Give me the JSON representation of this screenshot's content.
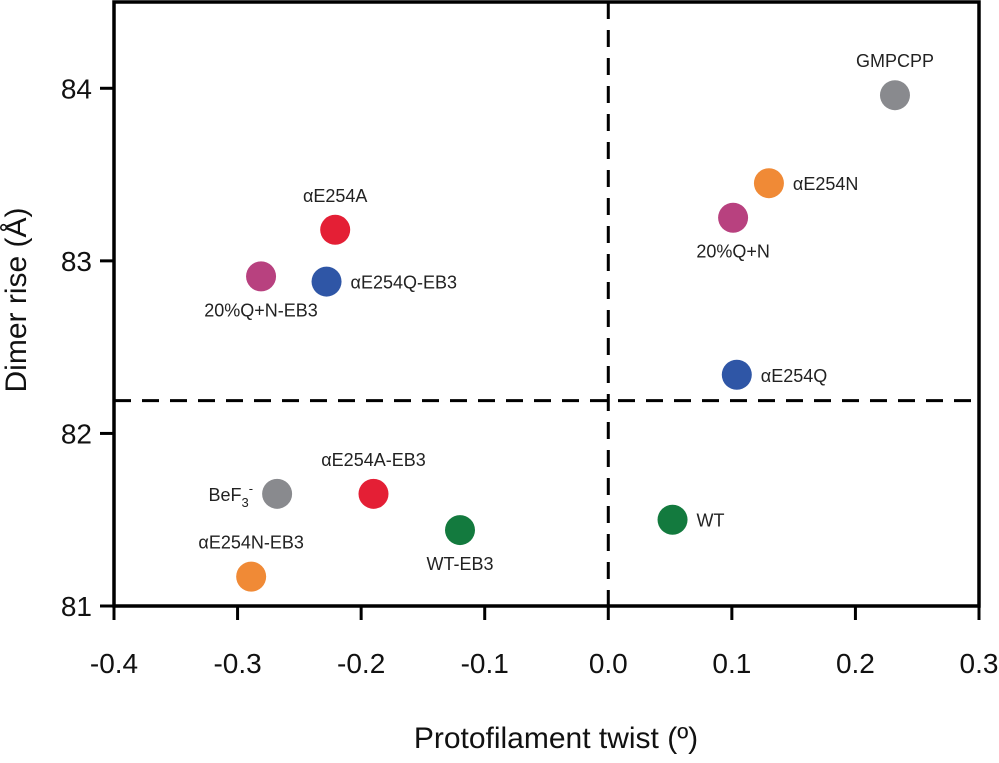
{
  "chart_data": {
    "type": "scatter",
    "title": "",
    "xlabel": "Protofilament twist (º)",
    "ylabel": "Dimer rise (Å)",
    "xlim": [
      -0.4,
      0.3
    ],
    "ylim": [
      81,
      84.5
    ],
    "x_ticks": [
      "-0.4",
      "-0.3",
      "-0.2",
      "-0.1",
      "0.0",
      "0.1",
      "0.2",
      "0.3"
    ],
    "y_ticks": [
      "81",
      "82",
      "83",
      "84"
    ],
    "reference_lines": {
      "x": 0.0,
      "y": 82.19
    },
    "colors": {
      "gray": "#898a8e",
      "orange": "#f08a36",
      "magenta": "#b8417f",
      "blue": "#2f56a6",
      "red": "#e41f35",
      "green": "#137a3e"
    },
    "points": [
      {
        "label": "GMPCPP",
        "x": 0.232,
        "y": 83.96,
        "color": "gray",
        "label_pos": "above"
      },
      {
        "label": "αE254N",
        "x": 0.13,
        "y": 83.45,
        "color": "orange",
        "label_pos": "right"
      },
      {
        "label": "20%Q+N",
        "x": 0.101,
        "y": 83.25,
        "color": "magenta",
        "label_pos": "below"
      },
      {
        "label": "αE254Q",
        "x": 0.104,
        "y": 82.34,
        "color": "blue",
        "label_pos": "right"
      },
      {
        "label": "WT",
        "x": 0.052,
        "y": 81.5,
        "color": "green",
        "label_pos": "right"
      },
      {
        "label": "αE254A",
        "x": -0.221,
        "y": 83.18,
        "color": "red",
        "label_pos": "above"
      },
      {
        "label": "20%Q+N-EB3",
        "x": -0.281,
        "y": 82.91,
        "color": "magenta",
        "label_pos": "below"
      },
      {
        "label": "αE254Q-EB3",
        "x": -0.228,
        "y": 82.88,
        "color": "blue",
        "label_pos": "right"
      },
      {
        "label": "αE254A-EB3",
        "x": -0.19,
        "y": 81.65,
        "color": "red",
        "label_pos": "above"
      },
      {
        "label": "BeF",
        "label_sub": "3",
        "label_sup": "-",
        "x": -0.268,
        "y": 81.65,
        "color": "gray",
        "label_pos": "left"
      },
      {
        "label": "WT-EB3",
        "x": -0.12,
        "y": 81.44,
        "color": "green",
        "label_pos": "below"
      },
      {
        "label": "αE254N-EB3",
        "x": -0.289,
        "y": 81.17,
        "color": "orange",
        "label_pos": "above"
      }
    ]
  }
}
